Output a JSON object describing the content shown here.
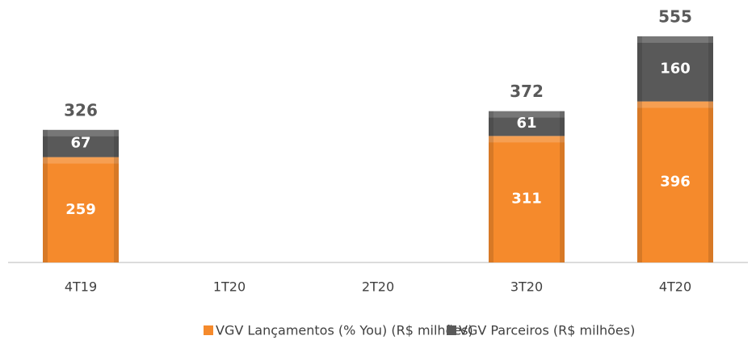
{
  "chart_data": {
    "type": "stacked_bar",
    "categories": [
      "4T19",
      "1T20",
      "2T20",
      "3T20",
      "4T20"
    ],
    "series": [
      {
        "name": "VGV Lançamentos (% You) (R$ milhões)",
        "color": "#f58a2c",
        "values": [
          259,
          null,
          null,
          311,
          396
        ]
      },
      {
        "name": "VGV Parceiros (R$ milhões)",
        "color": "#595959",
        "values": [
          67,
          null,
          null,
          61,
          160
        ]
      }
    ],
    "totals": [
      326,
      null,
      null,
      372,
      555
    ],
    "grid": false
  }
}
